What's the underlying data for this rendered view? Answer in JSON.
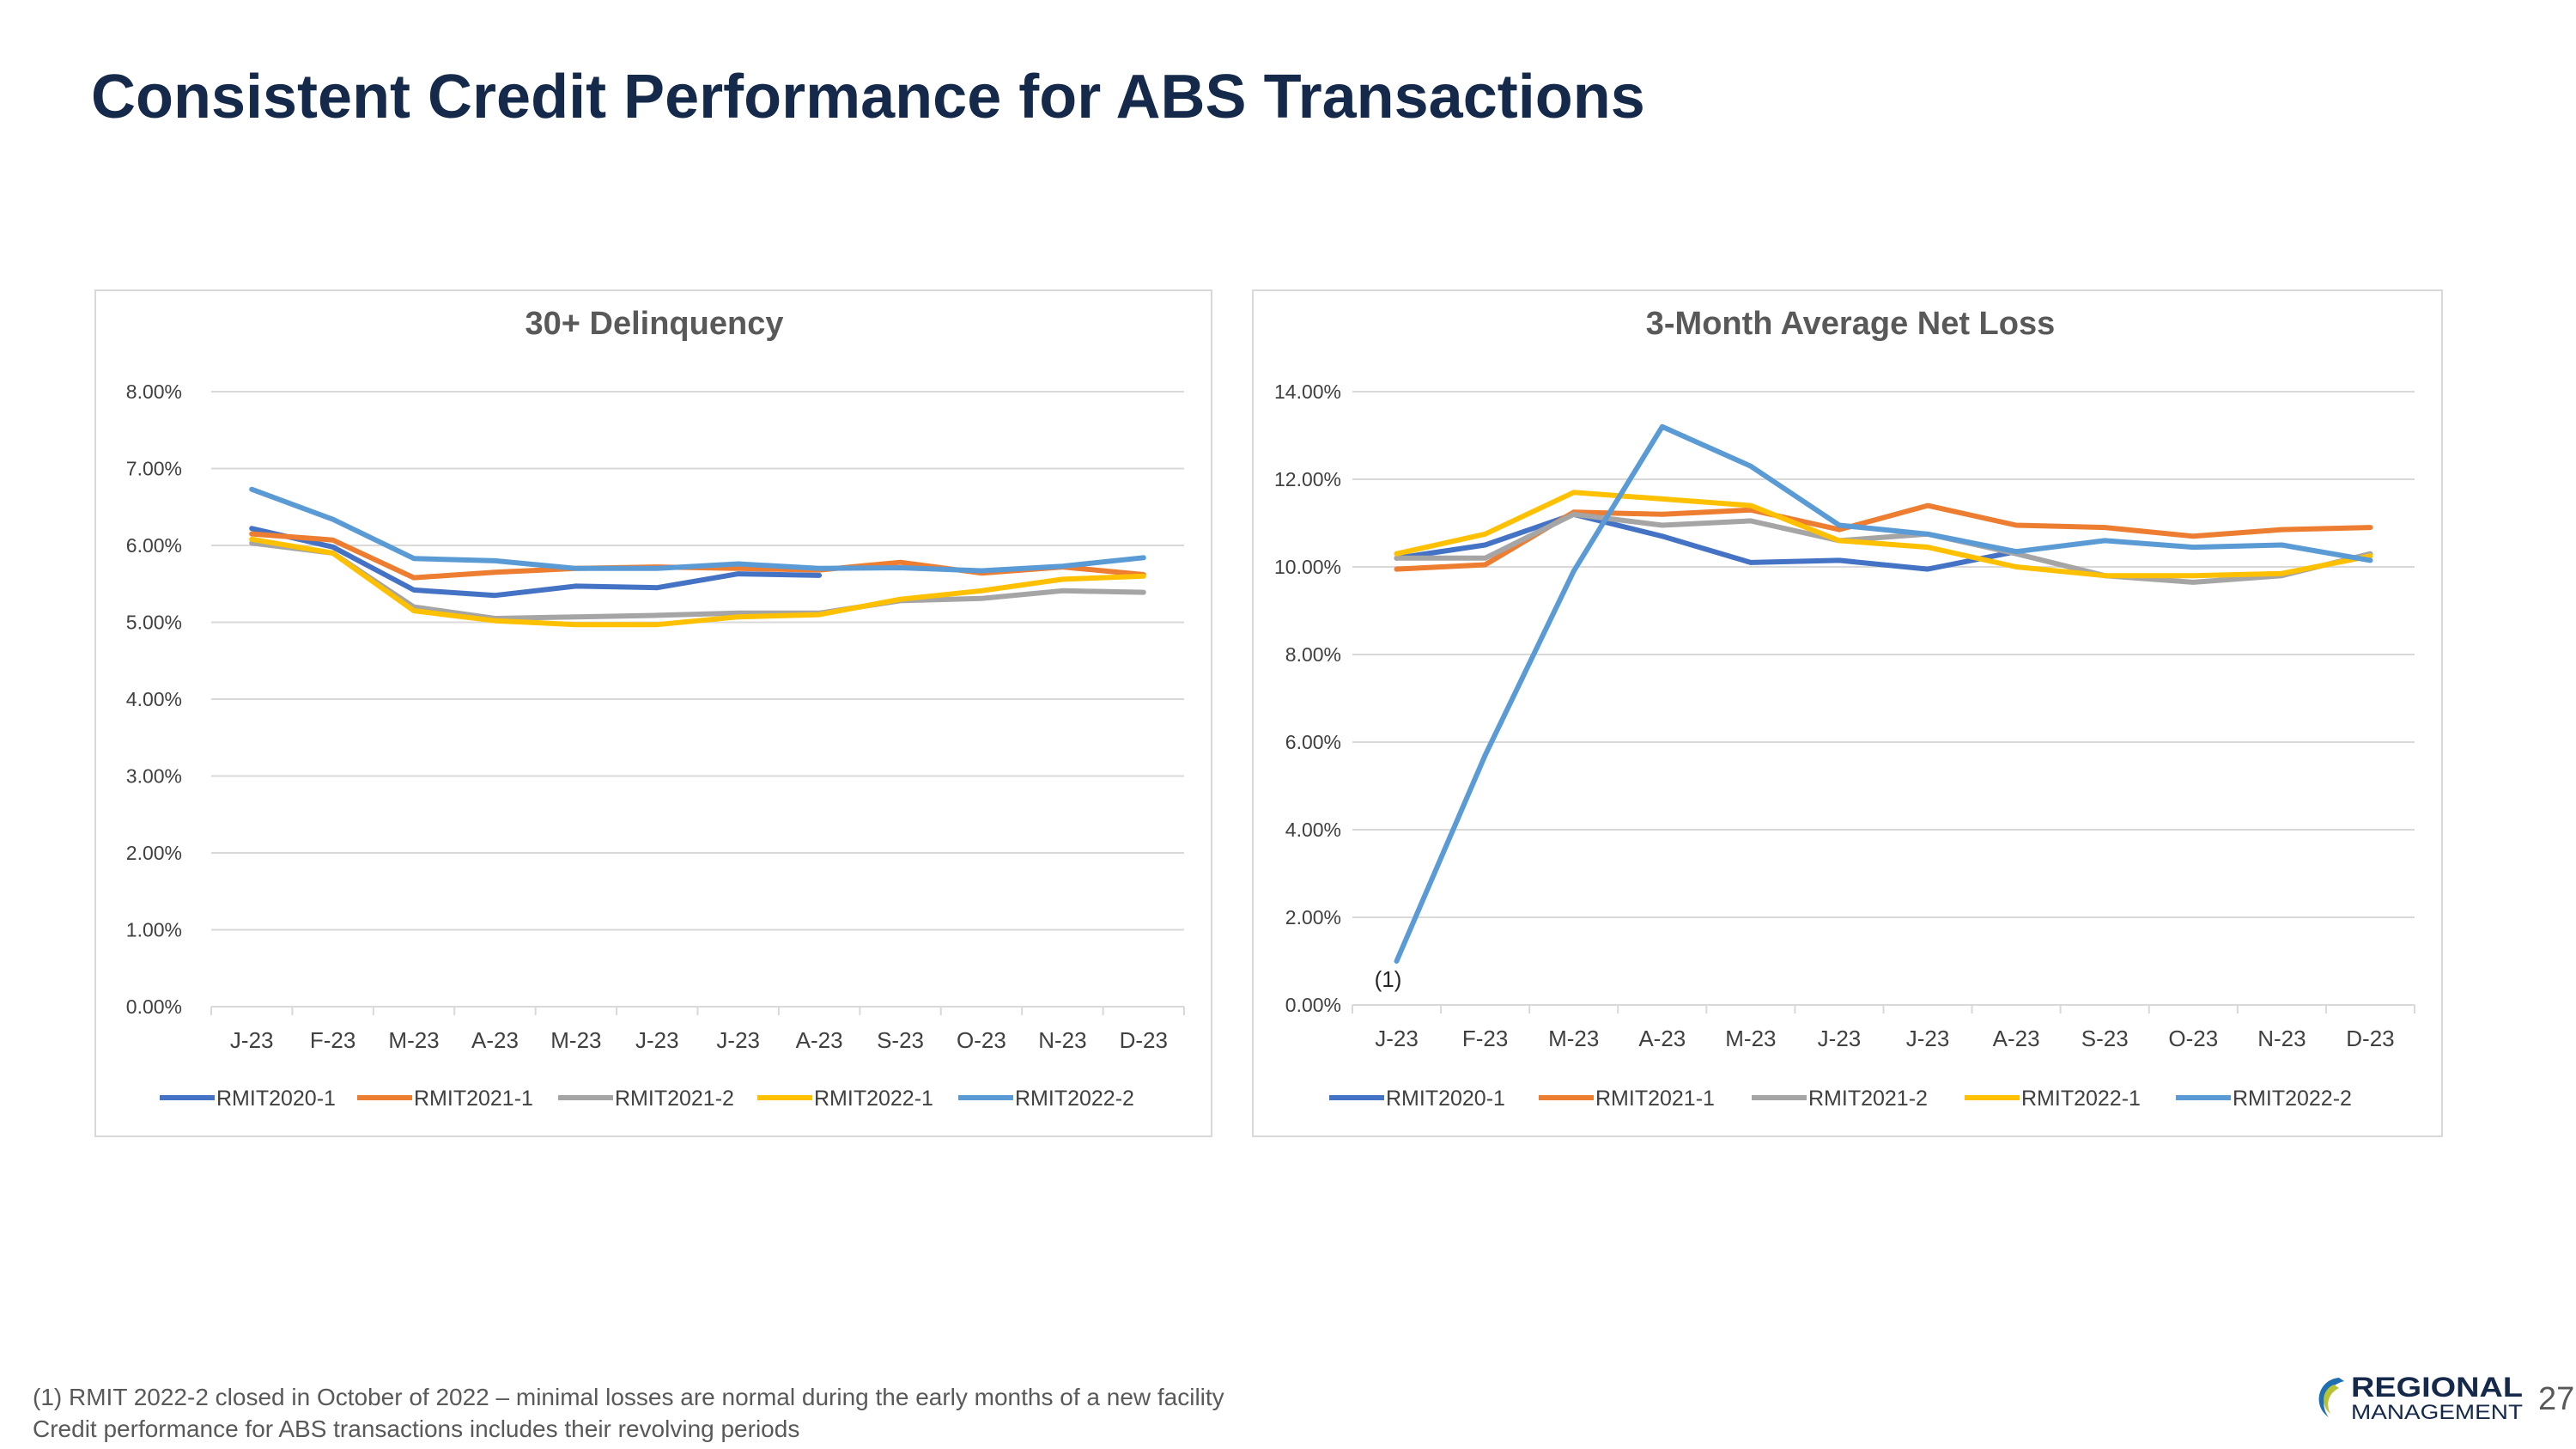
{
  "slide": {
    "title": "Consistent Credit Performance for ABS Transactions",
    "footnote_1": "(1)  RMIT 2022-2 closed in October of 2022 – minimal losses are normal during the early months of a new facility",
    "footnote_2": "Credit performance for ABS transactions includes their revolving periods",
    "logo_line1": "REGIONAL",
    "logo_line2": "MANAGEMENT",
    "page_number": "27"
  },
  "colors": {
    "RMIT2020-1": "#4472c4",
    "RMIT2021-1": "#ed7d31",
    "RMIT2021-2": "#a5a5a5",
    "RMIT2022-1": "#ffc000",
    "RMIT2022-2": "#5b9bd5",
    "title": "#15294a",
    "grid": "#d9d9d9",
    "axis_text": "#404040"
  },
  "chart_data": [
    {
      "type": "line",
      "title": "30+ Delinquency",
      "xlabel": "",
      "ylabel": "",
      "categories": [
        "J-23",
        "F-23",
        "M-23",
        "A-23",
        "M-23",
        "J-23",
        "J-23",
        "A-23",
        "S-23",
        "O-23",
        "N-23",
        "D-23"
      ],
      "ylim": [
        0,
        8
      ],
      "y_ticks": [
        "0.00%",
        "1.00%",
        "2.00%",
        "3.00%",
        "4.00%",
        "5.00%",
        "6.00%",
        "7.00%",
        "8.00%"
      ],
      "grid": true,
      "legend": "bottom",
      "series": [
        {
          "name": "RMIT2020-1",
          "values": [
            6.22,
            5.98,
            5.42,
            5.35,
            5.47,
            5.45,
            5.63,
            5.61,
            null,
            null,
            null,
            null
          ]
        },
        {
          "name": "RMIT2021-1",
          "values": [
            6.15,
            6.07,
            5.58,
            5.65,
            5.7,
            5.72,
            5.7,
            5.68,
            5.78,
            5.64,
            5.72,
            5.62
          ]
        },
        {
          "name": "RMIT2021-2",
          "values": [
            6.03,
            5.9,
            5.2,
            5.05,
            5.07,
            5.09,
            5.12,
            5.12,
            5.28,
            5.31,
            5.41,
            5.39
          ]
        },
        {
          "name": "RMIT2022-1",
          "values": [
            6.08,
            5.9,
            5.15,
            5.02,
            4.97,
            4.97,
            5.07,
            5.1,
            5.3,
            5.41,
            5.56,
            5.6
          ]
        },
        {
          "name": "RMIT2022-2",
          "values": [
            6.73,
            6.34,
            5.83,
            5.8,
            5.7,
            5.7,
            5.76,
            5.7,
            5.71,
            5.67,
            5.73,
            5.84
          ]
        }
      ]
    },
    {
      "type": "line",
      "title": "3-Month Average Net Loss",
      "xlabel": "",
      "ylabel": "",
      "categories": [
        "J-23",
        "F-23",
        "M-23",
        "A-23",
        "M-23",
        "J-23",
        "J-23",
        "A-23",
        "S-23",
        "O-23",
        "N-23",
        "D-23"
      ],
      "ylim": [
        0,
        14
      ],
      "y_ticks": [
        "0.00%",
        "2.00%",
        "4.00%",
        "6.00%",
        "8.00%",
        "10.00%",
        "12.00%",
        "14.00%"
      ],
      "grid": true,
      "legend": "bottom",
      "annotation": "(1)",
      "series": [
        {
          "name": "RMIT2020-1",
          "values": [
            10.2,
            10.5,
            11.2,
            10.7,
            10.1,
            10.15,
            9.95,
            10.35,
            null,
            null,
            null,
            null
          ]
        },
        {
          "name": "RMIT2021-1",
          "values": [
            9.95,
            10.05,
            11.25,
            11.2,
            11.3,
            10.85,
            11.4,
            10.95,
            10.9,
            10.7,
            10.85,
            10.9
          ]
        },
        {
          "name": "RMIT2021-2",
          "values": [
            10.2,
            10.2,
            11.2,
            10.95,
            11.05,
            10.6,
            10.75,
            10.3,
            9.8,
            9.65,
            9.8,
            10.3
          ]
        },
        {
          "name": "RMIT2022-1",
          "values": [
            10.3,
            10.75,
            11.7,
            11.55,
            11.4,
            10.6,
            10.45,
            10.0,
            9.8,
            9.8,
            9.85,
            10.25
          ]
        },
        {
          "name": "RMIT2022-2",
          "values": [
            1.0,
            5.7,
            9.9,
            13.2,
            12.3,
            10.95,
            10.75,
            10.35,
            10.6,
            10.45,
            10.5,
            10.15
          ]
        }
      ]
    }
  ]
}
